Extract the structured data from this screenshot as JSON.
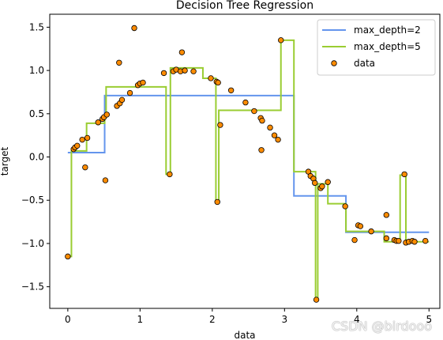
{
  "chart_data": {
    "type": "scatter+line",
    "title": "Decision Tree Regression",
    "xlabel": "data",
    "ylabel": "target",
    "xlim": [
      -0.25,
      5.15
    ],
    "ylim": [
      -1.75,
      1.65
    ],
    "xticks": [
      0,
      1,
      2,
      3,
      4,
      5
    ],
    "xtick_labels": [
      "0",
      "1",
      "2",
      "3",
      "4",
      "5"
    ],
    "yticks": [
      -1.5,
      -1.0,
      -0.5,
      0.0,
      0.5,
      1.0,
      1.5
    ],
    "ytick_labels": [
      "−1.5",
      "−1.0",
      "−0.5",
      "0.0",
      "0.5",
      "1.0",
      "1.5"
    ],
    "grid": false,
    "legend_position": "top-right",
    "series": [
      {
        "name": "max_depth=2",
        "kind": "line",
        "color": "#6495ed",
        "x": [
          0.0,
          0.51,
          0.51,
          3.13,
          3.13,
          3.85,
          3.85,
          5.0
        ],
        "y": [
          0.05,
          0.05,
          0.71,
          0.71,
          -0.45,
          -0.45,
          -0.87,
          -0.87
        ]
      },
      {
        "name": "max_depth=5",
        "kind": "line",
        "color": "#9acd32",
        "x": [
          0.0,
          0.05,
          0.05,
          0.26,
          0.26,
          0.51,
          0.51,
          0.53,
          0.53,
          1.36,
          1.36,
          1.42,
          1.42,
          1.87,
          1.87,
          2.05,
          2.05,
          2.09,
          2.09,
          2.95,
          2.95,
          3.13,
          3.13,
          3.43,
          3.43,
          3.46,
          3.46,
          3.6,
          3.6,
          3.85,
          3.85,
          4.38,
          4.38,
          4.6,
          4.6,
          4.68,
          4.68,
          5.0
        ],
        "y": [
          -1.15,
          -1.15,
          0.07,
          0.07,
          0.39,
          0.39,
          0.45,
          0.45,
          0.81,
          0.81,
          -0.2,
          -0.2,
          1.03,
          1.03,
          0.91,
          0.91,
          -0.52,
          -0.52,
          0.54,
          0.54,
          1.35,
          1.35,
          -0.17,
          -0.17,
          -1.65,
          -1.65,
          -0.31,
          -0.31,
          -0.54,
          -0.54,
          -0.86,
          -0.86,
          -0.98,
          -0.98,
          -0.21,
          -0.21,
          -0.98,
          -0.98
        ]
      },
      {
        "name": "data",
        "kind": "scatter",
        "color": "#ff8c00",
        "points": [
          [
            0.0,
            -1.15
          ],
          [
            0.08,
            0.09
          ],
          [
            0.1,
            0.11
          ],
          [
            0.13,
            0.13
          ],
          [
            0.2,
            0.2
          ],
          [
            0.24,
            -0.12
          ],
          [
            0.27,
            0.22
          ],
          [
            0.42,
            0.4
          ],
          [
            0.48,
            0.44
          ],
          [
            0.5,
            0.46
          ],
          [
            0.52,
            -0.27
          ],
          [
            0.54,
            0.49
          ],
          [
            0.68,
            0.59
          ],
          [
            0.71,
            1.09
          ],
          [
            0.72,
            0.62
          ],
          [
            0.75,
            0.66
          ],
          [
            0.86,
            0.74
          ],
          [
            0.92,
            1.49
          ],
          [
            0.97,
            0.83
          ],
          [
            1.0,
            0.85
          ],
          [
            1.04,
            0.86
          ],
          [
            1.33,
            0.97
          ],
          [
            1.41,
            -0.2
          ],
          [
            1.46,
            0.99
          ],
          [
            1.5,
            1.01
          ],
          [
            1.56,
            0.99
          ],
          [
            1.58,
            1.21
          ],
          [
            1.62,
            1.0
          ],
          [
            1.74,
            0.99
          ],
          [
            1.98,
            0.91
          ],
          [
            2.06,
            0.87
          ],
          [
            2.08,
            0.86
          ],
          [
            2.07,
            -0.52
          ],
          [
            2.11,
            0.37
          ],
          [
            2.26,
            0.77
          ],
          [
            2.46,
            0.63
          ],
          [
            2.58,
            0.53
          ],
          [
            2.67,
            0.45
          ],
          [
            2.69,
            0.42
          ],
          [
            2.68,
            0.08
          ],
          [
            2.8,
            0.34
          ],
          [
            2.86,
            0.25
          ],
          [
            2.91,
            0.2
          ],
          [
            2.95,
            1.35
          ],
          [
            3.33,
            -0.17
          ],
          [
            3.36,
            -0.22
          ],
          [
            3.4,
            -0.25
          ],
          [
            3.42,
            -0.3
          ],
          [
            3.44,
            -1.65
          ],
          [
            3.5,
            -0.36
          ],
          [
            3.52,
            -0.34
          ],
          [
            3.6,
            -0.29
          ],
          [
            3.84,
            -0.57
          ],
          [
            3.97,
            -0.96
          ],
          [
            4.02,
            -0.79
          ],
          [
            4.05,
            -0.8
          ],
          [
            4.2,
            -0.86
          ],
          [
            4.41,
            -0.67
          ],
          [
            4.41,
            -0.94
          ],
          [
            4.52,
            -0.96
          ],
          [
            4.55,
            -0.97
          ],
          [
            4.58,
            -0.97
          ],
          [
            4.66,
            -0.2
          ],
          [
            4.68,
            -0.99
          ],
          [
            4.72,
            -0.98
          ],
          [
            4.77,
            -0.97
          ],
          [
            4.8,
            -0.98
          ],
          [
            4.95,
            -0.97
          ]
        ]
      }
    ]
  },
  "watermark": "CSDN @birdooo"
}
